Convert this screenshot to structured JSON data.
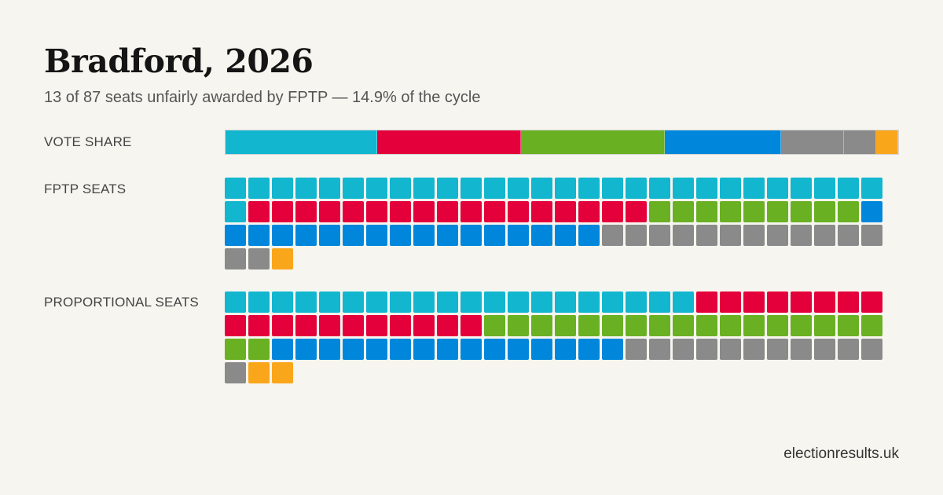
{
  "title": "Bradford, 2026",
  "subtitle": "13 of 87 seats unfairly awarded by FPTP — 14.9% of the cycle",
  "labels": {
    "vote_share": "VOTE SHARE",
    "fptp_seats": "FPTP SEATS",
    "proportional_seats": "PROPORTIONAL SEATS"
  },
  "footer": "electionresults.uk",
  "chart_data": {
    "type": "waffle",
    "seats_per_row": 28,
    "total_seats": 87,
    "parties": [
      {
        "color": "#12b6cf",
        "vote_share": 22.5,
        "fptp_seats": 29,
        "proportional_seats": 20
      },
      {
        "color": "#e4003b",
        "vote_share": 21.4,
        "fptp_seats": 17,
        "proportional_seats": 19
      },
      {
        "color": "#6ab023",
        "vote_share": 21.4,
        "fptp_seats": 9,
        "proportional_seats": 19
      },
      {
        "color": "#0087dc",
        "vote_share": 17.3,
        "fptp_seats": 17,
        "proportional_seats": 15
      },
      {
        "color": "#8a8a8a",
        "vote_share": 9.4,
        "fptp_seats": 14,
        "proportional_seats": 12
      },
      {
        "color": "#8a8a8a",
        "vote_share": 4.7,
        "fptp_seats": 0,
        "proportional_seats": 0
      },
      {
        "color": "#faa61a",
        "vote_share": 3.3,
        "fptp_seats": 1,
        "proportional_seats": 2
      }
    ]
  }
}
